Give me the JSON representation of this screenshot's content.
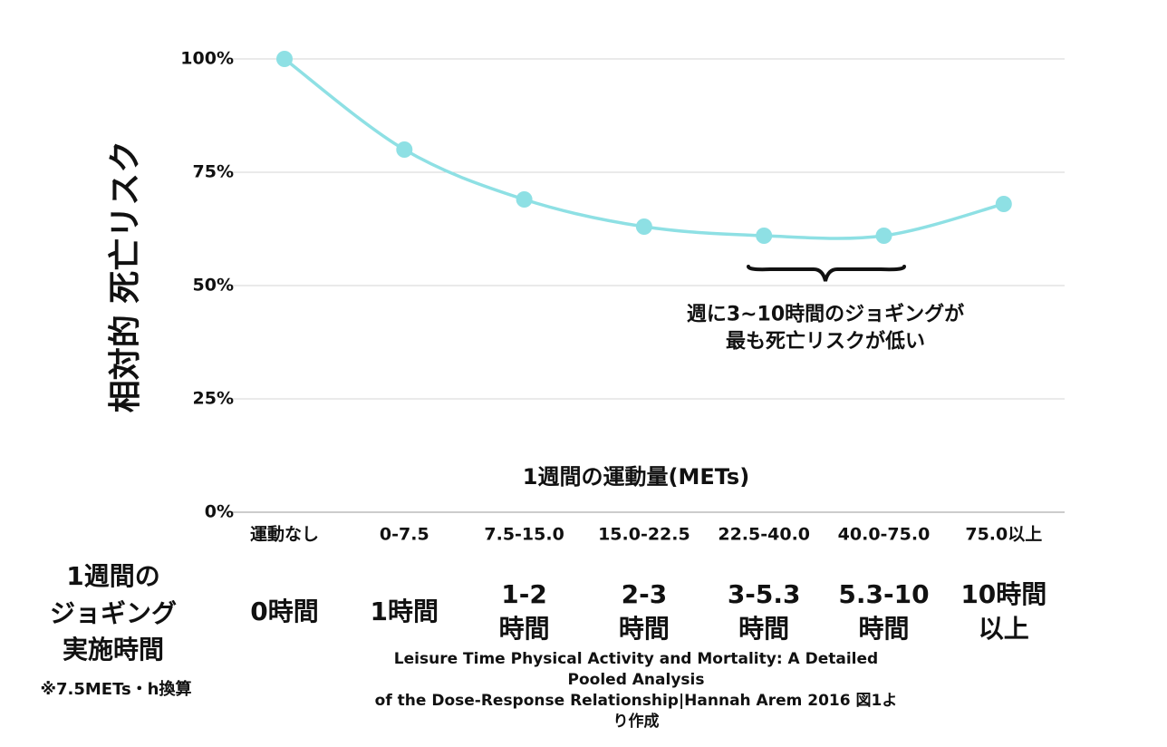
{
  "chart_data": {
    "type": "line",
    "y_label": "相対的 死亡リスク",
    "x_label": "1週間の運動量(METs)",
    "categories": [
      "運動なし",
      "0-7.5",
      "7.5-15.0",
      "15.0-22.5",
      "22.5-40.0",
      "40.0-75.0",
      "75.0以上"
    ],
    "values": [
      100,
      80,
      69,
      63,
      61,
      61,
      68
    ],
    "color": "#8ee0e4",
    "ylim": [
      0,
      100
    ],
    "yticks": [
      {
        "value": 0,
        "label": "0%"
      },
      {
        "value": 25,
        "label": "25%"
      },
      {
        "value": 50,
        "label": "50%"
      },
      {
        "value": 75,
        "label": "75%"
      },
      {
        "value": 100,
        "label": "100%"
      }
    ],
    "grid": true,
    "annotation": "週に3~10時間のジョギングが\n最も死亡リスクが低い"
  },
  "jogging": {
    "row_label": "1週間の\nジョギング\n実施時間",
    "note": "※7.5METs・h換算",
    "values": [
      "0時間",
      "1時間",
      "1-2\n時間",
      "2-3\n時間",
      "3-5.3\n時間",
      "5.3-10\n時間",
      "10時間\n以上"
    ]
  },
  "source": "Leisure Time Physical Activity and Mortality: A Detailed Pooled Analysis\nof the Dose-Response Relationship|Hannah Arem 2016 図1より作成"
}
